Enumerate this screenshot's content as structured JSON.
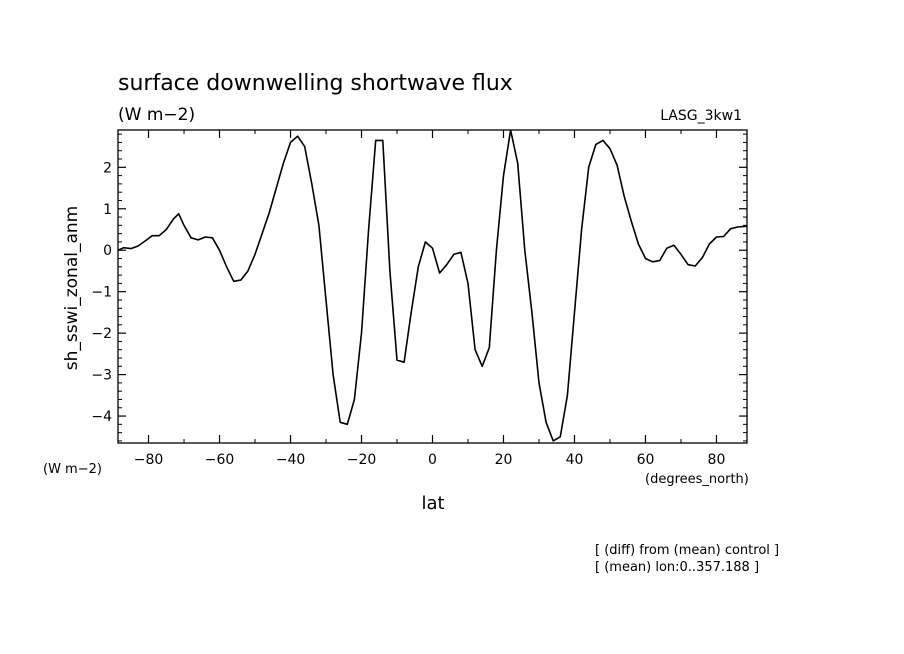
{
  "chart_data": {
    "type": "line",
    "title": "surface downwelling shortwave flux",
    "subtitle": "(W m−2)",
    "right_label": "LASG_3kw1",
    "ylabel": "sh_sswi_zonal_anm",
    "y_unit": "(W m−2)",
    "xlabel": "lat",
    "x_unit": "(degrees_north)",
    "xlim": [
      -88.6,
      88.6
    ],
    "ylim": [
      -4.65,
      2.9
    ],
    "x_ticks": [
      -80,
      -60,
      -40,
      -20,
      0,
      20,
      40,
      60,
      80
    ],
    "x_tick_labels": [
      "−80",
      "−60",
      "−40",
      "−20",
      "0",
      "20",
      "40",
      "60",
      "80"
    ],
    "y_ticks": [
      -4,
      -3,
      -2,
      -1,
      0,
      1,
      2
    ],
    "y_tick_labels": [
      "−4",
      "−3",
      "−2",
      "−1",
      "0",
      "1",
      "2"
    ],
    "grid": false,
    "notes": [
      "[ (diff) from (mean) control ]",
      "[ (mean) lon:0..357.188 ]"
    ],
    "series": [
      {
        "x": [
          -88.6,
          -87,
          -85,
          -83,
          -81,
          -79,
          -77,
          -75,
          -73,
          -71.5,
          -70,
          -68,
          -66,
          -64,
          -62,
          -60,
          -58,
          -56,
          -54,
          -52,
          -50,
          -48,
          -46,
          -44,
          -42,
          -40,
          -38,
          -36,
          -34,
          -32,
          -30,
          -28,
          -26,
          -24,
          -22,
          -20,
          -18,
          -16,
          -14,
          -12,
          -10,
          -8,
          -6,
          -4,
          -2,
          0,
          2,
          4,
          6,
          8,
          10,
          12,
          14,
          16,
          18,
          20,
          22,
          24,
          26,
          28,
          30,
          32,
          34,
          36,
          38,
          40,
          42,
          44,
          46,
          48,
          50,
          52,
          54,
          56,
          58,
          60,
          62,
          64,
          66,
          68,
          70,
          72,
          74,
          76,
          78,
          80,
          82,
          84,
          86,
          88.6
        ],
        "y": [
          0,
          0.06,
          0.04,
          0.1,
          0.22,
          0.35,
          0.35,
          0.5,
          0.75,
          0.88,
          0.6,
          0.3,
          0.25,
          0.32,
          0.3,
          0,
          -0.4,
          -0.75,
          -0.72,
          -0.5,
          -0.1,
          0.4,
          0.9,
          1.5,
          2.1,
          2.6,
          2.75,
          2.5,
          1.6,
          0.6,
          -1.2,
          -3,
          -4.15,
          -4.2,
          -3.6,
          -2,
          0.5,
          2.65,
          2.65,
          -0.5,
          -2.65,
          -2.7,
          -1.5,
          -0.4,
          0.2,
          0.05,
          -0.55,
          -0.35,
          -0.1,
          -0.05,
          -0.8,
          -2.4,
          -2.8,
          -2.35,
          0,
          1.8,
          2.9,
          2.1,
          0,
          -1.5,
          -3.2,
          -4.15,
          -4.6,
          -4.5,
          -3.5,
          -1.5,
          0.5,
          2,
          2.55,
          2.65,
          2.45,
          2.05,
          1.3,
          0.7,
          0.15,
          -0.2,
          -0.28,
          -0.25,
          0.05,
          0.12,
          -0.1,
          -0.35,
          -0.38,
          -0.18,
          0.15,
          0.32,
          0.33,
          0.52,
          0.56,
          0.58
        ],
        "color": "#000000"
      }
    ]
  }
}
